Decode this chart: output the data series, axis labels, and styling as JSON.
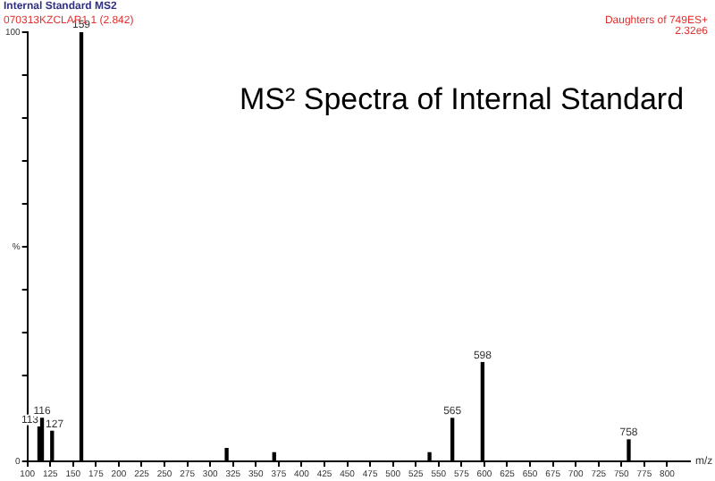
{
  "chart_data": {
    "type": "bar",
    "title": "MS² Spectra of Internal Standard",
    "subtitle": "Internal Standard MS2",
    "xlabel": "m/z",
    "x": [
      113,
      116,
      127,
      159,
      318,
      370,
      540,
      565,
      598,
      758
    ],
    "values": [
      8,
      10,
      7,
      100,
      3,
      2,
      2,
      10,
      23,
      5
    ],
    "color": "#000000",
    "xlim": [
      100,
      825
    ],
    "xticks": [
      100,
      125,
      150,
      175,
      200,
      225,
      250,
      275,
      300,
      325,
      350,
      375,
      400,
      425,
      450,
      475,
      500,
      525,
      550,
      575,
      600,
      625,
      650,
      675,
      700,
      725,
      750,
      775,
      800
    ],
    "ylim": [
      0,
      100
    ],
    "yticks": [
      0,
      {
        "value": 10,
        "label": null
      },
      {
        "value": 20,
        "label": null
      },
      {
        "value": 30,
        "label": null
      },
      {
        "value": 40,
        "label": null
      },
      {
        "value": 50,
        "label": "%"
      },
      {
        "value": 60,
        "label": null
      },
      {
        "value": 70,
        "label": null
      },
      {
        "value": 80,
        "label": null
      },
      {
        "value": 90,
        "label": null
      },
      100
    ],
    "grid": false,
    "legend": false,
    "annotations": [
      {
        "text": "113",
        "x": 113,
        "y": 8
      },
      {
        "text": "116",
        "x": 116,
        "y": 10
      },
      {
        "text": "127",
        "x": 127,
        "y": 7
      },
      {
        "text": "159",
        "x": 159,
        "y": 100
      },
      {
        "text": "565",
        "x": 565,
        "y": 10
      },
      {
        "text": "598",
        "x": 598,
        "y": 23
      },
      {
        "text": "758",
        "x": 758,
        "y": 5
      },
      "070313KZCLAR1 1 (2.842)",
      "Daughters of 749ES+",
      "2.32e6"
    ]
  }
}
